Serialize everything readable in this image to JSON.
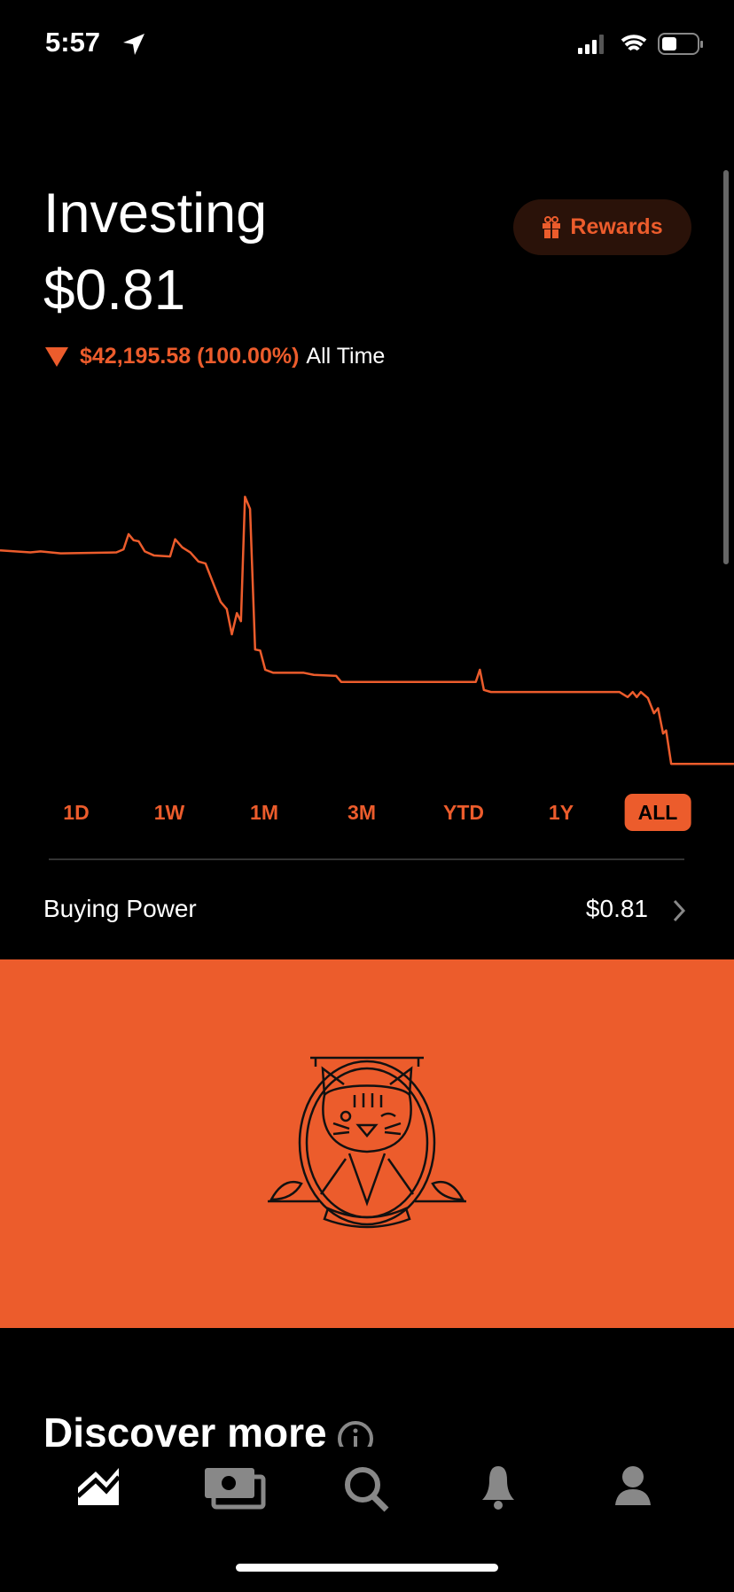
{
  "status": {
    "time": "5:57"
  },
  "header": {
    "title": "Investing",
    "balance": "$0.81",
    "change": "$42,195.58 (100.00%)",
    "period": "All Time",
    "rewards": "Rewards"
  },
  "ranges": [
    "1D",
    "1W",
    "1M",
    "3M",
    "YTD",
    "1Y",
    "ALL"
  ],
  "buying_power": {
    "label": "Buying Power",
    "value": "$0.81"
  },
  "discover": {
    "title": "Discover more"
  }
}
